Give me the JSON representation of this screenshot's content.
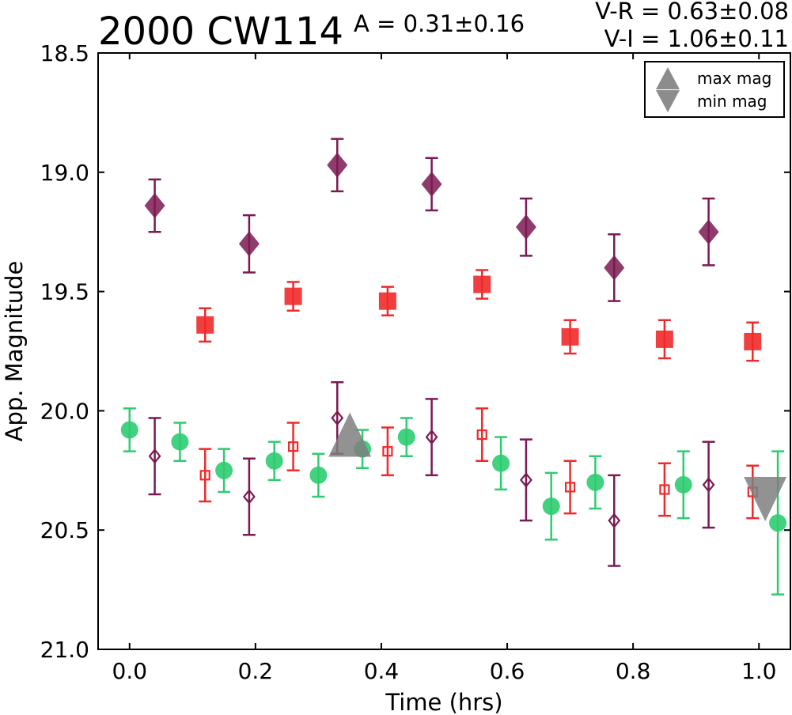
{
  "header": {
    "title": "2000 CW114",
    "amplitude": "A  = 0.31±0.16",
    "color_vr": "V-R = 0.63±0.08",
    "color_vi": "V-I  = 1.06±0.11"
  },
  "chart_data": {
    "type": "scatter",
    "xlabel": "Time (hrs)",
    "ylabel": "App. Magnitude",
    "xlim": [
      -0.05,
      1.05
    ],
    "ylim": [
      21.0,
      18.5
    ],
    "y_inverted": true,
    "grid": false,
    "xticks": [
      "0.0",
      "0.2",
      "0.4",
      "0.6",
      "0.8",
      "1.0"
    ],
    "yticks": [
      "18.5",
      "19.0",
      "19.5",
      "20.0",
      "20.5",
      "21.0"
    ],
    "legend": {
      "placement": "top-right",
      "entries": [
        {
          "label": "max mag",
          "marker": "triangle-up",
          "color": "#7f7f7f"
        },
        {
          "label": "min mag",
          "marker": "triangle-down",
          "color": "#7f7f7f"
        }
      ]
    },
    "series": [
      {
        "marker": "diamond",
        "filled": true,
        "color": "#7b1a52",
        "points": [
          {
            "x": 0.04,
            "y": 19.14,
            "err": 0.11
          },
          {
            "x": 0.19,
            "y": 19.3,
            "err": 0.12
          },
          {
            "x": 0.33,
            "y": 18.97,
            "err": 0.11
          },
          {
            "x": 0.48,
            "y": 19.05,
            "err": 0.11
          },
          {
            "x": 0.63,
            "y": 19.23,
            "err": 0.12
          },
          {
            "x": 0.77,
            "y": 19.4,
            "err": 0.14
          },
          {
            "x": 0.92,
            "y": 19.25,
            "err": 0.14
          }
        ]
      },
      {
        "marker": "square",
        "filled": true,
        "color": "#ef2a2a",
        "points": [
          {
            "x": 0.12,
            "y": 19.64,
            "err": 0.07
          },
          {
            "x": 0.26,
            "y": 19.52,
            "err": 0.06
          },
          {
            "x": 0.41,
            "y": 19.54,
            "err": 0.06
          },
          {
            "x": 0.56,
            "y": 19.47,
            "err": 0.06
          },
          {
            "x": 0.7,
            "y": 19.69,
            "err": 0.07
          },
          {
            "x": 0.85,
            "y": 19.7,
            "err": 0.08
          },
          {
            "x": 0.99,
            "y": 19.71,
            "err": 0.08
          }
        ]
      },
      {
        "marker": "circle",
        "filled": true,
        "color": "#2ecc71",
        "points": [
          {
            "x": 0.0,
            "y": 20.08,
            "err": 0.09
          },
          {
            "x": 0.08,
            "y": 20.13,
            "err": 0.08
          },
          {
            "x": 0.15,
            "y": 20.25,
            "err": 0.09
          },
          {
            "x": 0.23,
            "y": 20.21,
            "err": 0.08
          },
          {
            "x": 0.3,
            "y": 20.27,
            "err": 0.09
          },
          {
            "x": 0.37,
            "y": 20.16,
            "err": 0.08
          },
          {
            "x": 0.44,
            "y": 20.11,
            "err": 0.08
          },
          {
            "x": 0.59,
            "y": 20.22,
            "err": 0.11
          },
          {
            "x": 0.67,
            "y": 20.4,
            "err": 0.14
          },
          {
            "x": 0.74,
            "y": 20.3,
            "err": 0.11
          },
          {
            "x": 0.88,
            "y": 20.31,
            "err": 0.14
          },
          {
            "x": 1.03,
            "y": 20.47,
            "err": 0.3
          }
        ]
      },
      {
        "marker": "diamond",
        "filled": false,
        "color": "#7b1a52",
        "points": [
          {
            "x": 0.04,
            "y": 20.19,
            "err": 0.16
          },
          {
            "x": 0.19,
            "y": 20.36,
            "err": 0.16
          },
          {
            "x": 0.33,
            "y": 20.03,
            "err": 0.15
          },
          {
            "x": 0.48,
            "y": 20.11,
            "err": 0.16
          },
          {
            "x": 0.63,
            "y": 20.29,
            "err": 0.17
          },
          {
            "x": 0.77,
            "y": 20.46,
            "err": 0.19
          },
          {
            "x": 0.92,
            "y": 20.31,
            "err": 0.18
          }
        ]
      },
      {
        "marker": "square",
        "filled": false,
        "color": "#ef2a2a",
        "points": [
          {
            "x": 0.12,
            "y": 20.27,
            "err": 0.11
          },
          {
            "x": 0.26,
            "y": 20.15,
            "err": 0.1
          },
          {
            "x": 0.41,
            "y": 20.17,
            "err": 0.1
          },
          {
            "x": 0.56,
            "y": 20.1,
            "err": 0.11
          },
          {
            "x": 0.7,
            "y": 20.32,
            "err": 0.11
          },
          {
            "x": 0.85,
            "y": 20.33,
            "err": 0.11
          },
          {
            "x": 0.99,
            "y": 20.34,
            "err": 0.11
          }
        ]
      }
    ],
    "extrema": [
      {
        "kind": "max",
        "x": 0.35,
        "y": 20.1,
        "marker": "triangle-up",
        "color": "#7f7f7f"
      },
      {
        "kind": "min",
        "x": 1.01,
        "y": 20.37,
        "marker": "triangle-down",
        "color": "#7f7f7f"
      }
    ]
  }
}
